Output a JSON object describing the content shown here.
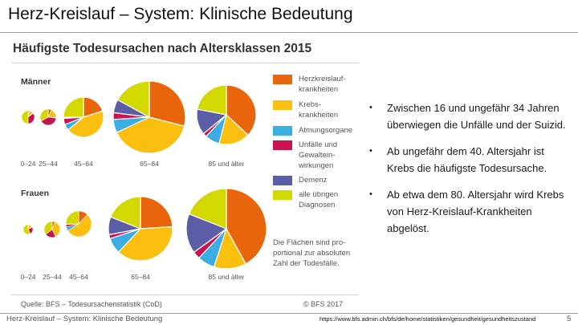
{
  "slide": {
    "title": "Herz-Kreislauf – System:  Klinische Bedeutung",
    "footer_text": "Herz-Kreislauf – System:  Klinische Bedeutung",
    "footer_url": "https://www.bfs.admin.ch/bfs/de/home/statistiken/gesundheit/gesundheitszustand",
    "page_number": "5"
  },
  "figure": {
    "title": "Häufigste Todesursachen nach Altersklassen 2015",
    "source": "Quelle: BFS – Todesursachenstatistik (CoD)",
    "copyright": "© BFS 2017",
    "note": "Die Flächen sind pro-portional zur absoluten Zahl der Todesfälle."
  },
  "bullets": [
    "Zwischen 16 und ungefähr 34 Jahren überwiegen die Unfälle und der Suizid.",
    "Ab ungefähr dem 40. Altersjahr ist Krebs die häufigste Todesursache.",
    "Ab etwa dem 80. Altersjahr wird Krebs von Herz-Kreislauf-Krankheiten abgelöst."
  ],
  "chart_data": {
    "type": "pie",
    "title": "Häufigste Todesursachen nach Altersklassen 2015",
    "categories": [
      {
        "label": "Herzkreislauf-\nkrankheiten",
        "color": "#e8650b"
      },
      {
        "label": "Krebs-\nkrankheiten",
        "color": "#fbbf0f"
      },
      {
        "label": "Atmungsorgane",
        "color": "#3aaee0"
      },
      {
        "label": "Unfälle und\nGewaltein-\nwirkungen",
        "color": "#c8134f"
      },
      {
        "label": "Demenz",
        "color": "#5b5ea6"
      },
      {
        "label": "alle übrigen\nDiagnosen",
        "color": "#d3d800"
      }
    ],
    "groups": [
      {
        "name": "Männer",
        "pies": [
          {
            "age": "0–24",
            "values": [
              3,
              10,
              2,
              35,
              0,
              50
            ]
          },
          {
            "age": "25–44",
            "values": [
              7,
              19,
              1,
              40,
              0,
              33
            ]
          },
          {
            "age": "45–64",
            "values": [
              20,
              44,
              5,
              5,
              1,
              25
            ]
          },
          {
            "age": "65–84",
            "values": [
              29,
              39,
              6,
              3,
              6,
              17
            ]
          },
          {
            "age": "85 und älter",
            "values": [
              37,
              17,
              8,
              2,
              14,
              22
            ]
          }
        ]
      },
      {
        "name": "Frauen",
        "pies": [
          {
            "age": "0–24",
            "values": [
              3,
              12,
              2,
              25,
              0,
              58
            ]
          },
          {
            "age": "25–44",
            "values": [
              6,
              36,
              1,
              22,
              0,
              35
            ]
          },
          {
            "age": "45–64",
            "values": [
              12,
              54,
              5,
              3,
              1,
              25
            ]
          },
          {
            "age": "65–84",
            "values": [
              24,
              38,
              8,
              2,
              9,
              19
            ]
          },
          {
            "age": "85 und älter",
            "values": [
              42,
              13,
              7,
              3,
              16,
              19
            ]
          }
        ]
      }
    ]
  }
}
